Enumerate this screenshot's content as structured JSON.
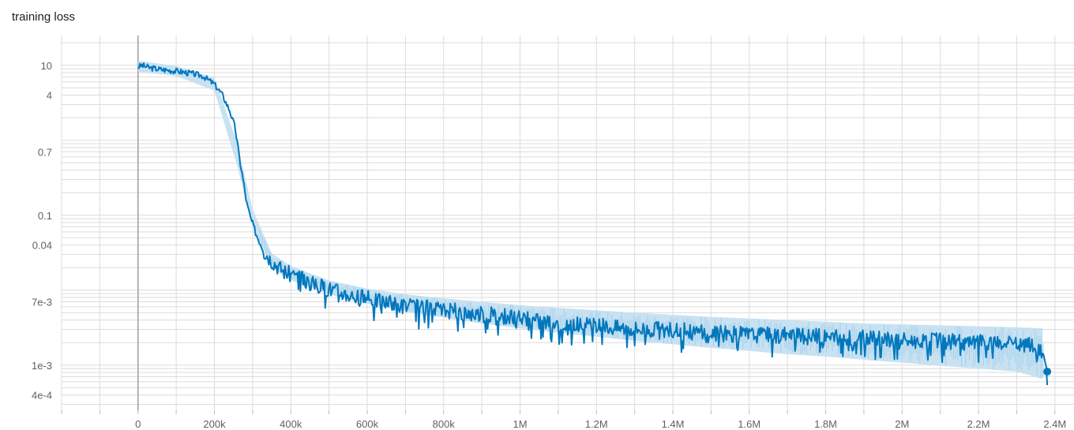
{
  "chart_data": {
    "type": "line",
    "title": "training loss",
    "xlabel": "",
    "ylabel": "",
    "y_scale": "log",
    "grid": true,
    "x_range": [
      -200000,
      2450000
    ],
    "y_range": [
      0.00025,
      25
    ],
    "x_ticks": [
      {
        "value": 0,
        "label": "0"
      },
      {
        "value": 200000,
        "label": "200k"
      },
      {
        "value": 400000,
        "label": "400k"
      },
      {
        "value": 600000,
        "label": "600k"
      },
      {
        "value": 800000,
        "label": "800k"
      },
      {
        "value": 1000000,
        "label": "1M"
      },
      {
        "value": 1200000,
        "label": "1.2M"
      },
      {
        "value": 1400000,
        "label": "1.4M"
      },
      {
        "value": 1600000,
        "label": "1.6M"
      },
      {
        "value": 1800000,
        "label": "1.8M"
      },
      {
        "value": 2000000,
        "label": "2M"
      },
      {
        "value": 2200000,
        "label": "2.2M"
      },
      {
        "value": 2400000,
        "label": "2.4M"
      }
    ],
    "y_ticks": [
      {
        "value": 10,
        "label": "10"
      },
      {
        "value": 4,
        "label": "4"
      },
      {
        "value": 0.7,
        "label": "0.7"
      },
      {
        "value": 0.1,
        "label": "0.1"
      },
      {
        "value": 0.04,
        "label": "0.04"
      },
      {
        "value": 0.007,
        "label": "7e-3"
      },
      {
        "value": 0.001,
        "label": "1e-3"
      },
      {
        "value": 0.0004,
        "label": "4e-4"
      }
    ],
    "colors": {
      "smoothed": "#0277bd",
      "raw": "#c2dff1",
      "grid": "#dcdcdc",
      "zero_axis": "#9e9e9e"
    },
    "series": [
      {
        "style": "smoothed",
        "x": [
          0,
          10000,
          30000,
          60000,
          100000,
          140000,
          170000,
          200000,
          220000,
          240000,
          255000,
          265000,
          275000,
          285000,
          295000,
          310000,
          330000,
          350000,
          380000,
          420000,
          460000,
          500000,
          550000,
          600000,
          650000,
          700000,
          750000,
          800000,
          850000,
          900000,
          950000,
          1000000,
          1050000,
          1100000,
          1150000,
          1200000,
          1250000,
          1300000,
          1350000,
          1400000,
          1450000,
          1500000,
          1550000,
          1600000,
          1650000,
          1700000,
          1750000,
          1800000,
          1850000,
          1900000,
          1950000,
          2000000,
          2050000,
          2100000,
          2150000,
          2200000,
          2250000,
          2300000,
          2340000,
          2370000,
          2380000
        ],
        "y": [
          9.5,
          10.0,
          9.3,
          8.8,
          8.4,
          7.8,
          7.2,
          5.6,
          4.1,
          2.5,
          1.4,
          0.6,
          0.3,
          0.14,
          0.09,
          0.055,
          0.033,
          0.025,
          0.018,
          0.0145,
          0.012,
          0.0105,
          0.0088,
          0.0077,
          0.0069,
          0.0062,
          0.0058,
          0.0054,
          0.0051,
          0.0048,
          0.0045,
          0.0042,
          0.0039,
          0.0037,
          0.0035,
          0.0033,
          0.0032,
          0.0031,
          0.003,
          0.0029,
          0.0028,
          0.0027,
          0.0026,
          0.0026,
          0.0025,
          0.0025,
          0.0024,
          0.0024,
          0.0023,
          0.0023,
          0.0022,
          0.0022,
          0.0021,
          0.0021,
          0.002,
          0.002,
          0.0019,
          0.0019,
          0.0018,
          0.0014,
          0.00082
        ]
      }
    ],
    "raw_band": {
      "x": [
        0,
        100000,
        200000,
        260000,
        300000,
        350000,
        400000,
        500000,
        600000,
        700000,
        800000,
        900000,
        1000000,
        1100000,
        1200000,
        1300000,
        1400000,
        1500000,
        1600000,
        1700000,
        1800000,
        1900000,
        2000000,
        2100000,
        2200000,
        2300000,
        2370000
      ],
      "lower": [
        8.2,
        7.2,
        4.6,
        0.45,
        0.07,
        0.02,
        0.0135,
        0.0088,
        0.0066,
        0.0052,
        0.0043,
        0.0036,
        0.0031,
        0.0027,
        0.0024,
        0.0021,
        0.0019,
        0.0017,
        0.00155,
        0.0014,
        0.0013,
        0.00118,
        0.00108,
        0.00098,
        0.0009,
        0.00082,
        0.00065
      ],
      "upper": [
        11.5,
        9.8,
        6.8,
        0.9,
        0.12,
        0.031,
        0.021,
        0.0135,
        0.0105,
        0.0088,
        0.0078,
        0.007,
        0.0063,
        0.0058,
        0.0054,
        0.005,
        0.0047,
        0.0044,
        0.0042,
        0.004,
        0.0038,
        0.0036,
        0.0035,
        0.0034,
        0.0033,
        0.0032,
        0.0031
      ]
    },
    "end_marker": {
      "x": 2380000,
      "y": 0.00082
    }
  }
}
